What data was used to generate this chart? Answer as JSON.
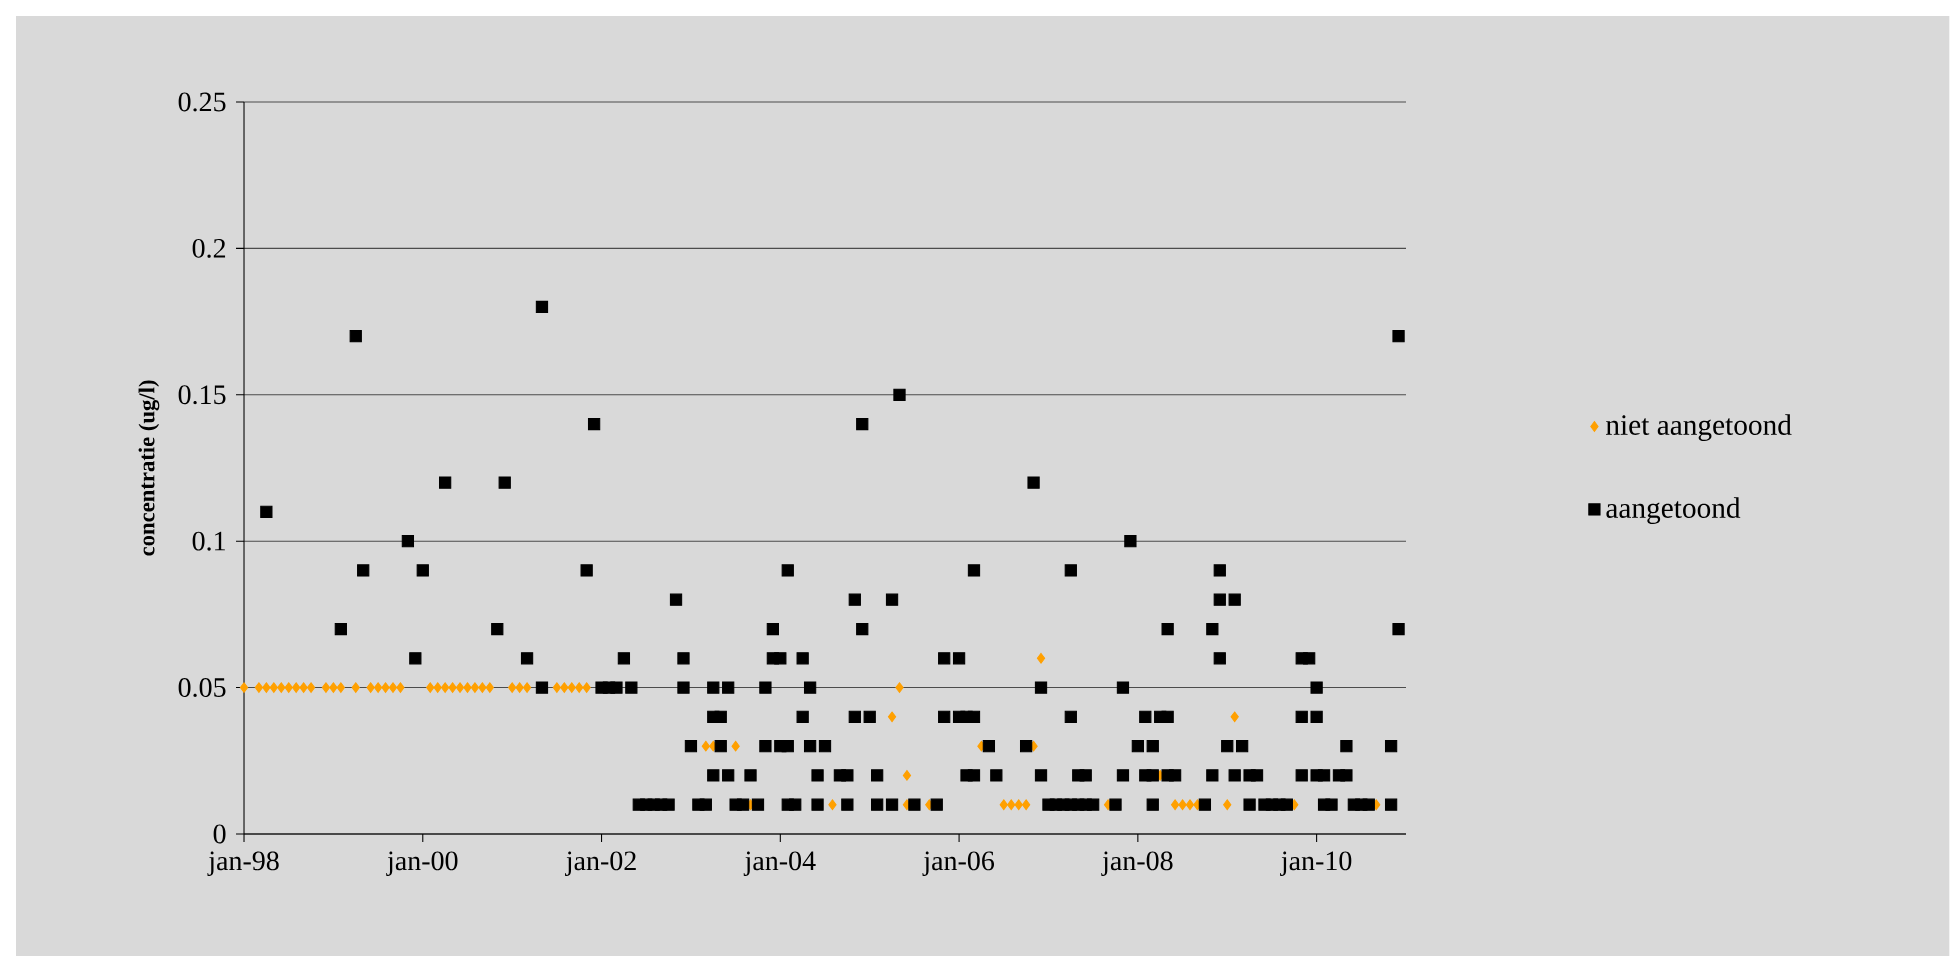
{
  "chart_data": {
    "type": "scatter",
    "ylabel": "concentratie (ug/l)",
    "xlim": [
      "1998-01",
      "2011-01"
    ],
    "xticks": [
      {
        "value": "1998-01",
        "label": "jan-98"
      },
      {
        "value": "2000-01",
        "label": "jan-00"
      },
      {
        "value": "2002-01",
        "label": "jan-02"
      },
      {
        "value": "2004-01",
        "label": "jan-04"
      },
      {
        "value": "2006-01",
        "label": "jan-06"
      },
      {
        "value": "2008-01",
        "label": "jan-08"
      },
      {
        "value": "2010-01",
        "label": "jan-10"
      }
    ],
    "ylim": [
      0,
      0.25
    ],
    "yticks": [
      0,
      0.05,
      0.1,
      0.15,
      0.2,
      0.25
    ],
    "grid": "y",
    "legend": "right",
    "series": [
      {
        "name": "niet aangetoond",
        "color": "#ffa000",
        "marker": "diamond",
        "x": [
          "1998-01",
          "1998-03",
          "1998-04",
          "1998-05",
          "1998-06",
          "1998-07",
          "1998-08",
          "1998-09",
          "1998-10",
          "1998-12",
          "1999-01",
          "1999-02",
          "1999-04",
          "1999-06",
          "1999-07",
          "1999-08",
          "1999-09",
          "1999-10",
          "2000-02",
          "2000-03",
          "2000-04",
          "2000-05",
          "2000-06",
          "2000-07",
          "2000-08",
          "2000-09",
          "2000-10",
          "2001-01",
          "2001-02",
          "2001-03",
          "2001-07",
          "2001-08",
          "2001-09",
          "2001-10",
          "2001-11",
          "2005-05",
          "2006-12",
          "2005-04",
          "2009-02",
          "2003-03",
          "2003-04",
          "2003-07",
          "2006-04",
          "2006-11",
          "2005-06",
          "2008-04",
          "2003-09",
          "2004-08",
          "2005-06",
          "2005-09",
          "2006-07",
          "2006-08",
          "2006-09",
          "2006-10",
          "2007-09",
          "2008-06",
          "2008-07",
          "2008-08",
          "2008-09",
          "2009-01",
          "2009-10",
          "2010-09"
        ],
        "values": [
          0.05,
          0.05,
          0.05,
          0.05,
          0.05,
          0.05,
          0.05,
          0.05,
          0.05,
          0.05,
          0.05,
          0.05,
          0.05,
          0.05,
          0.05,
          0.05,
          0.05,
          0.05,
          0.05,
          0.05,
          0.05,
          0.05,
          0.05,
          0.05,
          0.05,
          0.05,
          0.05,
          0.05,
          0.05,
          0.05,
          0.05,
          0.05,
          0.05,
          0.05,
          0.05,
          0.05,
          0.06,
          0.04,
          0.04,
          0.03,
          0.03,
          0.03,
          0.03,
          0.03,
          0.02,
          0.02,
          0.01,
          0.01,
          0.01,
          0.01,
          0.01,
          0.01,
          0.01,
          0.01,
          0.01,
          0.01,
          0.01,
          0.01,
          0.01,
          0.01,
          0.01,
          0.01
        ]
      },
      {
        "name": "aangetoond",
        "color": "#000000",
        "marker": "square",
        "x": [
          "1998-04",
          "1999-04",
          "1999-05",
          "1999-02",
          "1999-11",
          "2000-01",
          "1999-12",
          "2000-04",
          "2000-12",
          "2001-05",
          "2001-12",
          "2001-11",
          "2000-11",
          "2001-03",
          "2001-05",
          "2002-01",
          "2002-02",
          "2002-03",
          "2002-05",
          "2002-12",
          "2002-04",
          "2002-11",
          "2002-12",
          "2003-01",
          "2002-06",
          "2002-07",
          "2002-08",
          "2002-09",
          "2002-10",
          "2005-05",
          "2004-12",
          "2004-02",
          "2004-11",
          "2005-04",
          "2003-12",
          "2004-12",
          "2003-12",
          "2004-01",
          "2004-04",
          "2003-04",
          "2003-06",
          "2003-11",
          "2004-05",
          "2003-04",
          "2003-05",
          "2004-04",
          "2004-11",
          "2005-01",
          "2003-05",
          "2003-11",
          "2004-01",
          "2004-02",
          "2004-05",
          "2004-07",
          "2003-04",
          "2003-06",
          "2003-09",
          "2004-06",
          "2004-09",
          "2004-10",
          "2005-02",
          "2003-02",
          "2003-03",
          "2003-07",
          "2003-08",
          "2003-10",
          "2004-02",
          "2004-03",
          "2004-06",
          "2004-10",
          "2005-02",
          "2005-04",
          "2005-07",
          "2006-11",
          "2007-12",
          "2006-03",
          "2007-04",
          "2008-05",
          "2005-11",
          "2006-01",
          "2006-12",
          "2007-11",
          "2005-11",
          "2006-01",
          "2006-02",
          "2006-03",
          "2007-04",
          "2008-02",
          "2008-04",
          "2006-05",
          "2006-10",
          "2008-01",
          "2008-03",
          "2006-02",
          "2006-03",
          "2006-06",
          "2006-12",
          "2007-05",
          "2007-06",
          "2007-11",
          "2008-02",
          "2008-03",
          "2008-05",
          "2005-10",
          "2007-01",
          "2007-02",
          "2007-03",
          "2007-04",
          "2007-05",
          "2007-06",
          "2007-07",
          "2007-10",
          "2008-03",
          "2010-12",
          "2008-12",
          "2008-12",
          "2009-02",
          "2008-11",
          "2010-12",
          "2008-12",
          "2009-11",
          "2009-12",
          "2010-01",
          "2008-05",
          "2009-11",
          "2010-01",
          "2009-01",
          "2009-03",
          "2010-05",
          "2010-11",
          "2008-06",
          "2008-11",
          "2009-02",
          "2009-04",
          "2009-05",
          "2009-11",
          "2010-01",
          "2010-02",
          "2010-04",
          "2010-05",
          "2008-10",
          "2009-04",
          "2009-06",
          "2009-07",
          "2009-08",
          "2009-09",
          "2010-02",
          "2010-03",
          "2010-06",
          "2010-07",
          "2010-08",
          "2010-11"
        ],
        "values": [
          0.11,
          0.17,
          0.09,
          0.07,
          0.1,
          0.09,
          0.06,
          0.12,
          0.12,
          0.18,
          0.14,
          0.09,
          0.07,
          0.06,
          0.05,
          0.05,
          0.05,
          0.05,
          0.05,
          0.05,
          0.06,
          0.08,
          0.06,
          0.03,
          0.01,
          0.01,
          0.01,
          0.01,
          0.01,
          0.15,
          0.14,
          0.09,
          0.08,
          0.08,
          0.07,
          0.07,
          0.06,
          0.06,
          0.06,
          0.05,
          0.05,
          0.05,
          0.05,
          0.04,
          0.04,
          0.04,
          0.04,
          0.04,
          0.03,
          0.03,
          0.03,
          0.03,
          0.03,
          0.03,
          0.02,
          0.02,
          0.02,
          0.02,
          0.02,
          0.02,
          0.02,
          0.01,
          0.01,
          0.01,
          0.01,
          0.01,
          0.01,
          0.01,
          0.01,
          0.01,
          0.01,
          0.01,
          0.01,
          0.12,
          0.1,
          0.09,
          0.09,
          0.07,
          0.06,
          0.06,
          0.05,
          0.05,
          0.04,
          0.04,
          0.04,
          0.04,
          0.04,
          0.04,
          0.04,
          0.03,
          0.03,
          0.03,
          0.03,
          0.02,
          0.02,
          0.02,
          0.02,
          0.02,
          0.02,
          0.02,
          0.02,
          0.02,
          0.02,
          0.01,
          0.01,
          0.01,
          0.01,
          0.01,
          0.01,
          0.01,
          0.01,
          0.01,
          0.01,
          0.17,
          0.09,
          0.08,
          0.08,
          0.07,
          0.07,
          0.06,
          0.06,
          0.06,
          0.05,
          0.04,
          0.04,
          0.04,
          0.03,
          0.03,
          0.03,
          0.03,
          0.02,
          0.02,
          0.02,
          0.02,
          0.02,
          0.02,
          0.02,
          0.02,
          0.02,
          0.02,
          0.01,
          0.01,
          0.01,
          0.01,
          0.01,
          0.01,
          0.01,
          0.01,
          0.01,
          0.01,
          0.01,
          0.01
        ]
      }
    ]
  }
}
